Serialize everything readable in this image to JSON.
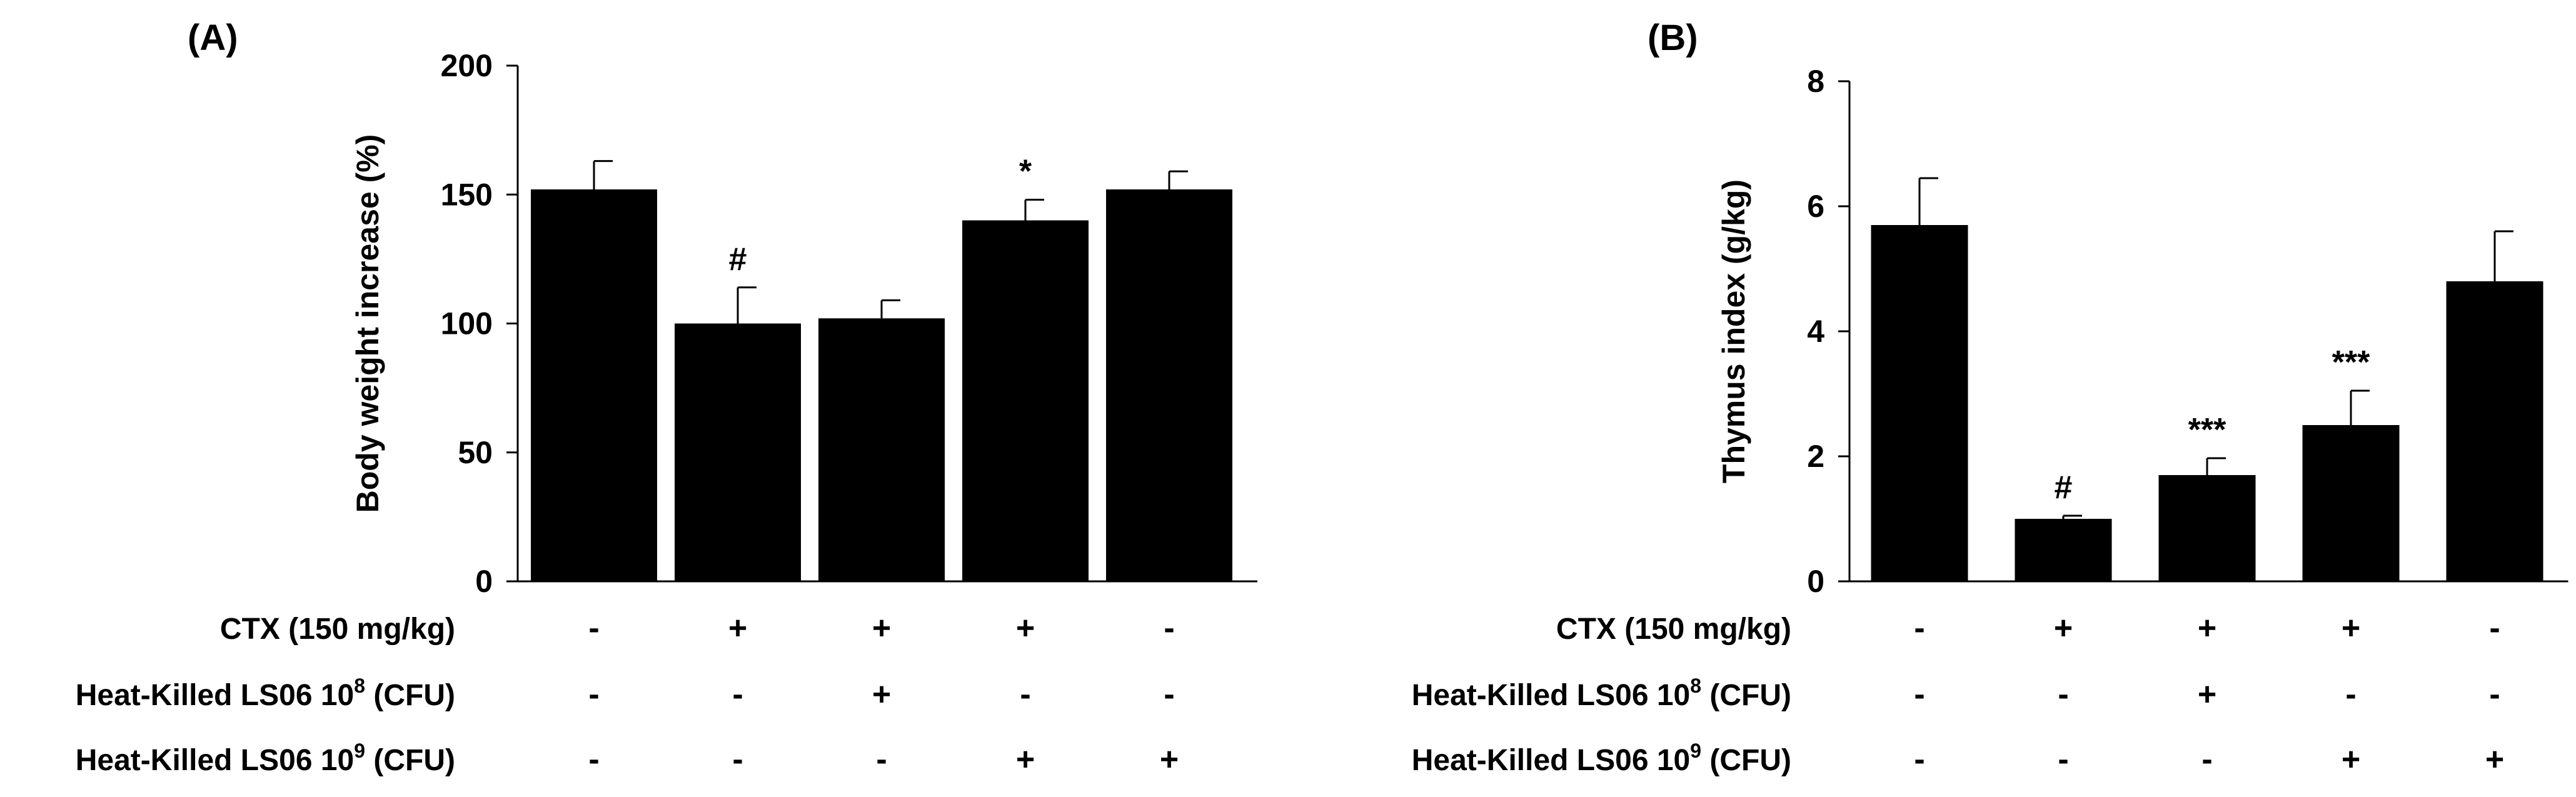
{
  "colors": {
    "bar": "#000000",
    "axis": "#000000",
    "background": "#ffffff"
  },
  "treatment_rows": [
    {
      "label": "CTX (150 mg/kg)",
      "sup": "",
      "rest": ""
    },
    {
      "label": "Heat-Killed LS06 10",
      "sup": "8",
      "rest": " (CFU)"
    },
    {
      "label": "Heat-Killed LS06 10",
      "sup": "9",
      "rest": " (CFU)"
    }
  ],
  "chart_data": [
    {
      "panel": "(A)",
      "type": "bar",
      "ylabel": "Body weight increase (%)",
      "ylim": [
        0,
        200
      ],
      "yticks": [
        0,
        50,
        100,
        150,
        200
      ],
      "values": [
        152,
        100,
        102,
        140,
        152
      ],
      "errors": [
        11,
        14,
        7,
        8,
        7
      ],
      "significance": [
        "",
        "#",
        "",
        "*",
        ""
      ],
      "treatments": [
        [
          "-",
          "+",
          "+",
          "+",
          "-"
        ],
        [
          "-",
          "-",
          "+",
          "-",
          "-"
        ],
        [
          "-",
          "-",
          "-",
          "+",
          "+"
        ]
      ],
      "grid": false,
      "bar_color": "#000000"
    },
    {
      "panel": "(B)",
      "type": "bar",
      "ylabel": "Thymus index (g/kg)",
      "ylim": [
        0,
        8
      ],
      "yticks": [
        0,
        2,
        4,
        6,
        8
      ],
      "values": [
        5.7,
        1.0,
        1.7,
        2.5,
        4.8
      ],
      "errors": [
        0.75,
        0.05,
        0.27,
        0.55,
        0.8
      ],
      "significance": [
        "",
        "#",
        "***",
        "***",
        ""
      ],
      "treatments": [
        [
          "-",
          "+",
          "+",
          "+",
          "-"
        ],
        [
          "-",
          "-",
          "+",
          "-",
          "-"
        ],
        [
          "-",
          "-",
          "-",
          "+",
          "+"
        ]
      ],
      "grid": false,
      "bar_color": "#000000"
    }
  ]
}
